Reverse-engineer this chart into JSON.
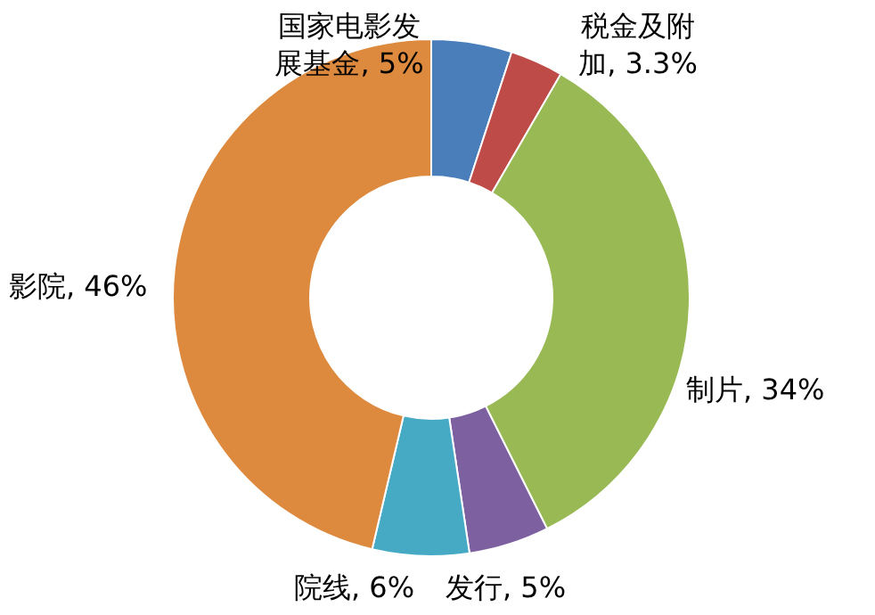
{
  "chart_data": {
    "type": "donut",
    "categories": [
      "国家电影发展基金",
      "税金及附加",
      "制片",
      "发行",
      "院线",
      "影院"
    ],
    "values": [
      5,
      3.3,
      34,
      5,
      6,
      46
    ],
    "value_labels": [
      "5%",
      "3.3%",
      "34%",
      "5%",
      "6%",
      "46%"
    ],
    "colors": [
      "#4a7ebb",
      "#be4b48",
      "#98b954",
      "#7d60a0",
      "#46aac5",
      "#dd8a3e"
    ]
  }
}
